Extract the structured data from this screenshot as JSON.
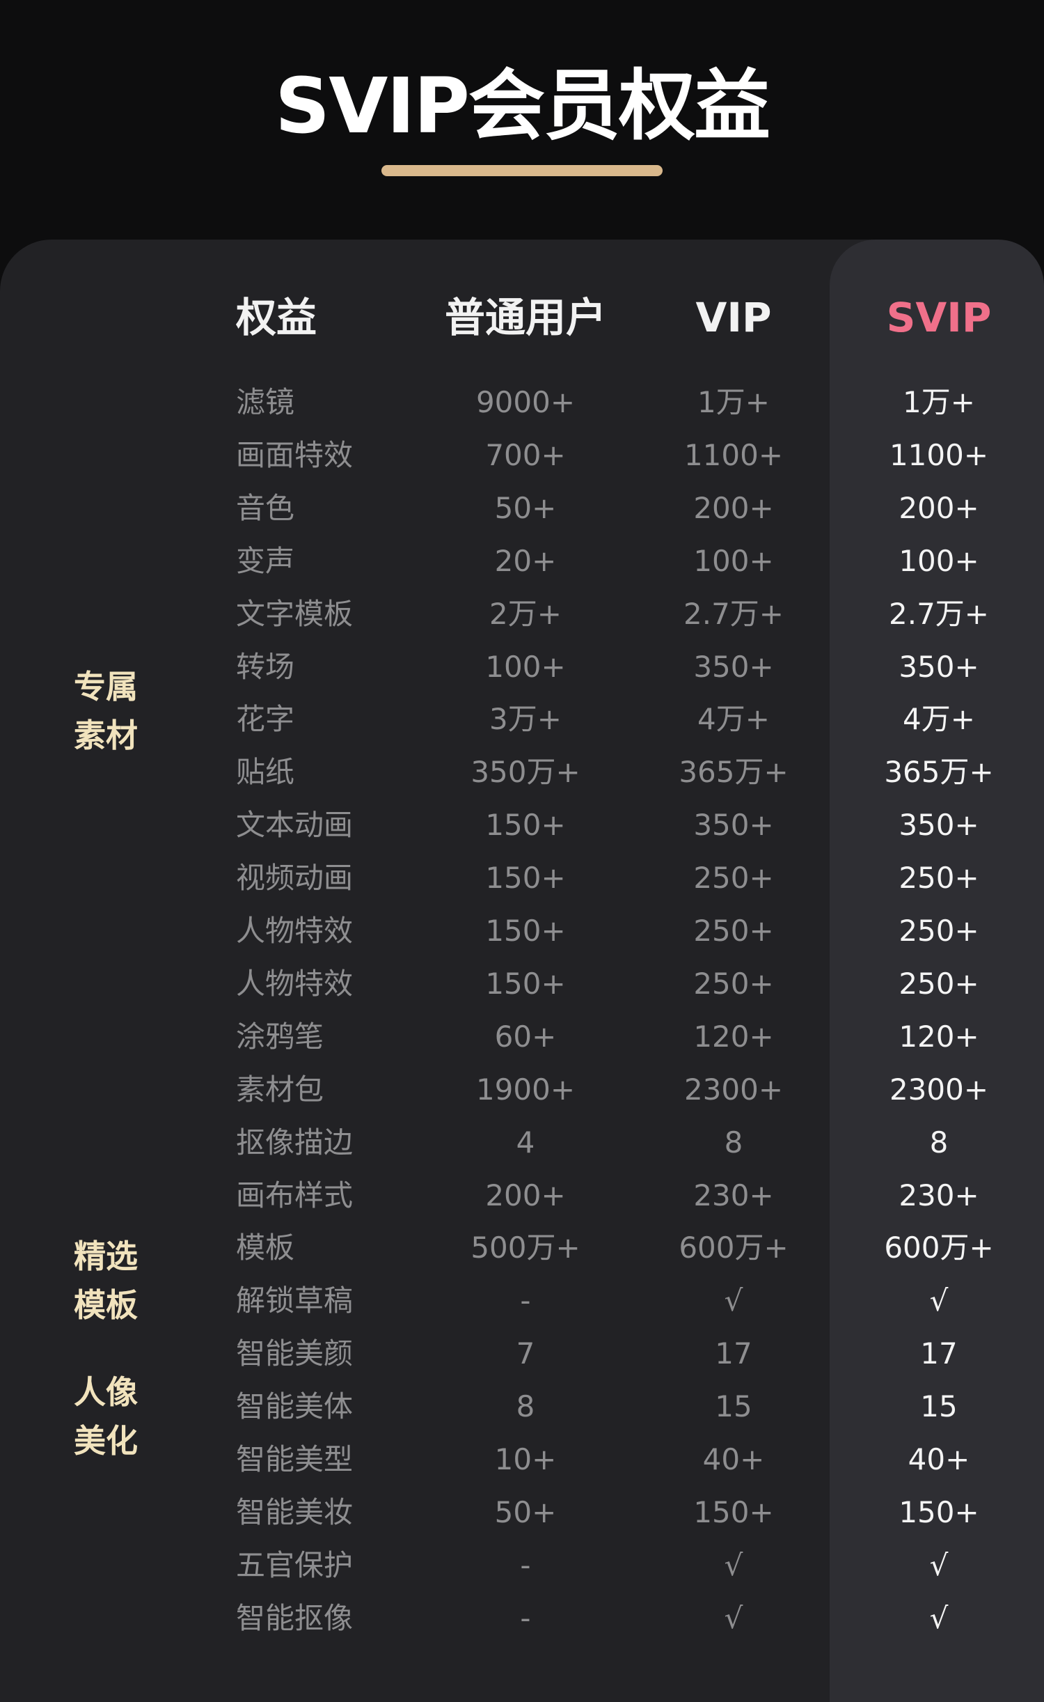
{
  "header": {
    "title": "SVIP会员权益"
  },
  "table": {
    "headers": [
      "权益",
      "普通用户",
      "VIP",
      "SVIP"
    ],
    "groups": [
      "专属素材",
      "精选模板",
      "人像美化"
    ],
    "rows": [
      [
        "滤镜",
        "9000+",
        "1万+",
        "1万+"
      ],
      [
        "画面特效",
        "700+",
        "1100+",
        "1100+"
      ],
      [
        "音色",
        "50+",
        "200+",
        "200+"
      ],
      [
        "变声",
        "20+",
        "100+",
        "100+"
      ],
      [
        "文字模板",
        "2万+",
        "2.7万+",
        "2.7万+"
      ],
      [
        "转场",
        "100+",
        "350+",
        "350+"
      ],
      [
        "花字",
        "3万+",
        "4万+",
        "4万+"
      ],
      [
        "贴纸",
        "350万+",
        "365万+",
        "365万+"
      ],
      [
        "文本动画",
        "150+",
        "350+",
        "350+"
      ],
      [
        "视频动画",
        "150+",
        "250+",
        "250+"
      ],
      [
        "人物特效",
        "150+",
        "250+",
        "250+"
      ],
      [
        "人物特效",
        "150+",
        "250+",
        "250+"
      ],
      [
        "涂鸦笔",
        "60+",
        "120+",
        "120+"
      ],
      [
        "素材包",
        "1900+",
        "2300+",
        "2300+"
      ],
      [
        "抠像描边",
        "4",
        "8",
        "8"
      ],
      [
        "画布样式",
        "200+",
        "230+",
        "230+"
      ],
      [
        "模板",
        "500万+",
        "600万+",
        "600万+"
      ],
      [
        "解锁草稿",
        "-",
        "√",
        "√"
      ],
      [
        "智能美颜",
        "7",
        "17",
        "17"
      ],
      [
        "智能美体",
        "8",
        "15",
        "15"
      ],
      [
        "智能美型",
        "10+",
        "40+",
        "40+"
      ],
      [
        "智能美妆",
        "50+",
        "150+",
        "150+"
      ],
      [
        "五官保护",
        "-",
        "√",
        "√"
      ],
      [
        "智能抠像",
        "-",
        "√",
        "√"
      ]
    ]
  }
}
